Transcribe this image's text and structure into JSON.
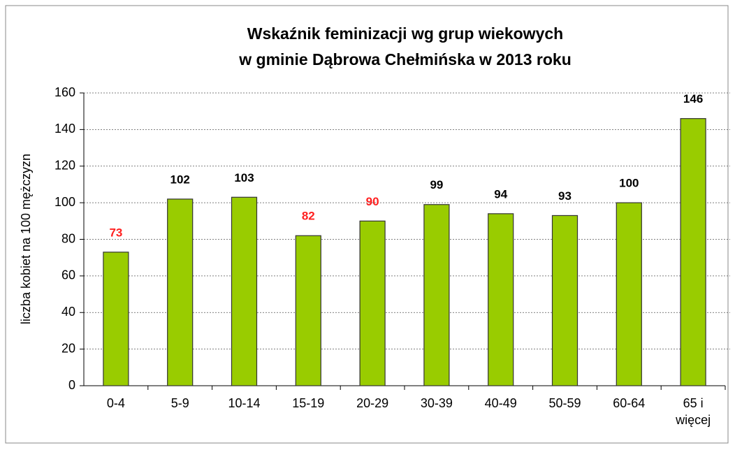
{
  "chart_data": {
    "type": "bar",
    "title": [
      "Wskaźnik feminizacji wg grup wiekowych",
      "w gminie Dąbrowa Chełmińska w 2013 roku"
    ],
    "y_label": "liczba kobiet na 100 mężczyzn",
    "categories": [
      "0-4",
      "5-9",
      "10-14",
      "15-19",
      "20-29",
      "30-39",
      "40-49",
      "50-59",
      "60-64",
      "65 i więcej"
    ],
    "values": [
      73,
      102,
      103,
      82,
      90,
      99,
      94,
      93,
      100,
      146
    ],
    "value_label_colors": [
      "#ff2020",
      "#000000",
      "#000000",
      "#ff2020",
      "#ff2020",
      "#000000",
      "#000000",
      "#000000",
      "#000000",
      "#000000"
    ],
    "color": "#99cc00",
    "ylim": [
      0,
      160
    ],
    "yticks": [
      0,
      20,
      40,
      60,
      80,
      100,
      120,
      140,
      160
    ],
    "grid": true
  }
}
